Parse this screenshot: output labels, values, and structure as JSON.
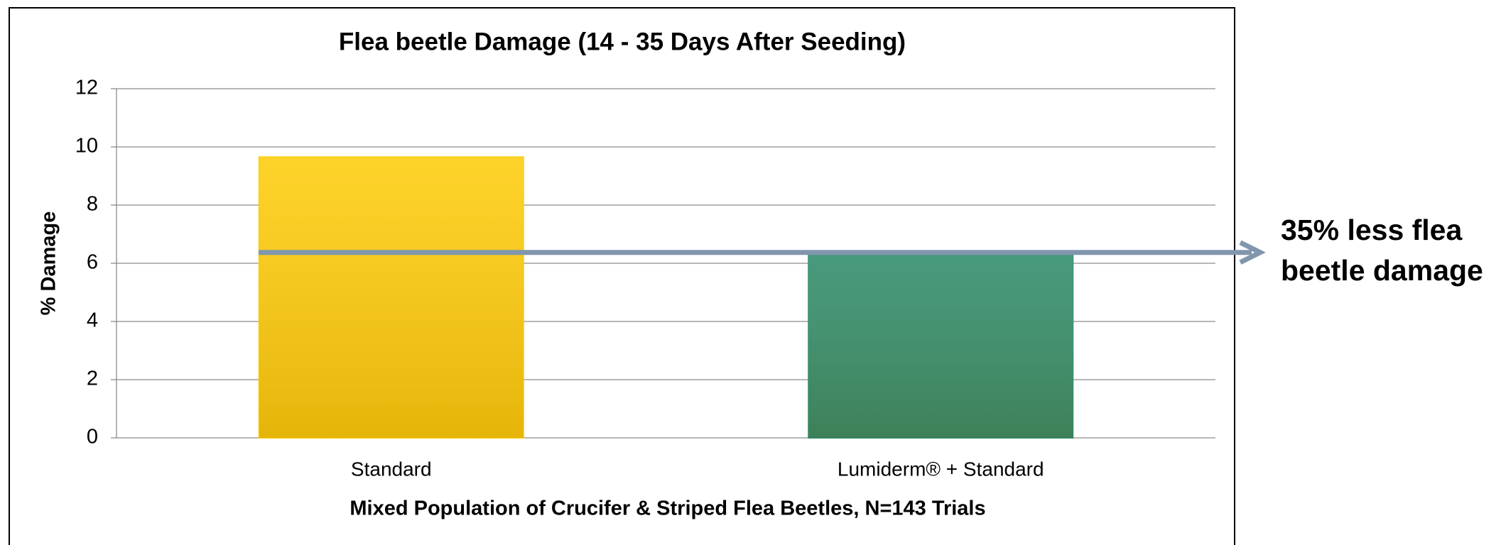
{
  "chart_data": {
    "type": "bar",
    "title": "Flea beetle Damage (14 - 35 Days After Seeding)",
    "ylabel": "% Damage",
    "xlabel": "Mixed Population of Crucifer & Striped Flea Beetles, N=143 Trials",
    "categories": [
      "Standard",
      "Lumiderm® + Standard"
    ],
    "values": [
      9.65,
      6.3
    ],
    "colors": [
      "#fdcc0c",
      "#2f8c6b"
    ],
    "ylim": [
      0,
      12
    ],
    "yticks": [
      0,
      2,
      4,
      6,
      8,
      10,
      12
    ],
    "grid": true,
    "annotation": [
      "35% less flea",
      "beetle damage"
    ]
  }
}
